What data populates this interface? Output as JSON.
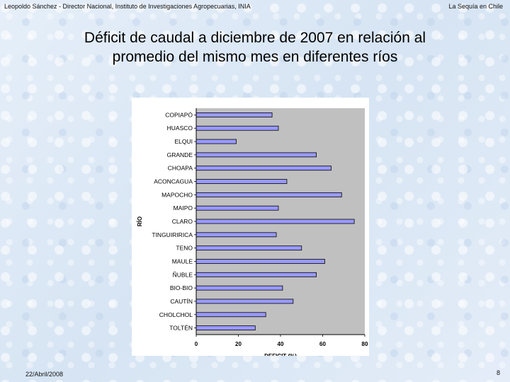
{
  "header": {
    "left": "Leopoldo Sánchez - Director Nacional, Instituto de Investigaciones Agropecuarias, INIA",
    "right": "La Sequía en Chile"
  },
  "title_line1": "Déficit  de caudal a diciembre de 2007 en relación al",
  "title_line2": "promedio del mismo mes en diferentes ríos",
  "chart_data": {
    "type": "bar",
    "orientation": "horizontal",
    "categories": [
      "COPIAPÓ",
      "HUASCO",
      "ELQUI",
      "GRANDE",
      "CHOAPA",
      "ACONCAGUA",
      "MAPOCHO",
      "MAIPO",
      "CLARO",
      "TINGUIRIRICA",
      "TENO",
      "MAULE",
      "ÑUBLE",
      "BIO-BIO",
      "CAUTÍN",
      "CHOLCHOL",
      "TOLTÉN"
    ],
    "values": [
      36,
      39,
      19,
      57,
      64,
      43,
      69,
      39,
      75,
      38,
      50,
      61,
      57,
      41,
      46,
      33,
      28
    ],
    "xlabel": "DEFICIT (%)",
    "ylabel": "RÍO",
    "xlim": [
      0,
      80
    ],
    "xticks": [
      0,
      20,
      40,
      60,
      80
    ],
    "bar_color": "#9999ff",
    "plot_background": "#c0c0c0",
    "grid": false
  },
  "footer": {
    "date": "22/Abril/2008",
    "page": "8"
  }
}
